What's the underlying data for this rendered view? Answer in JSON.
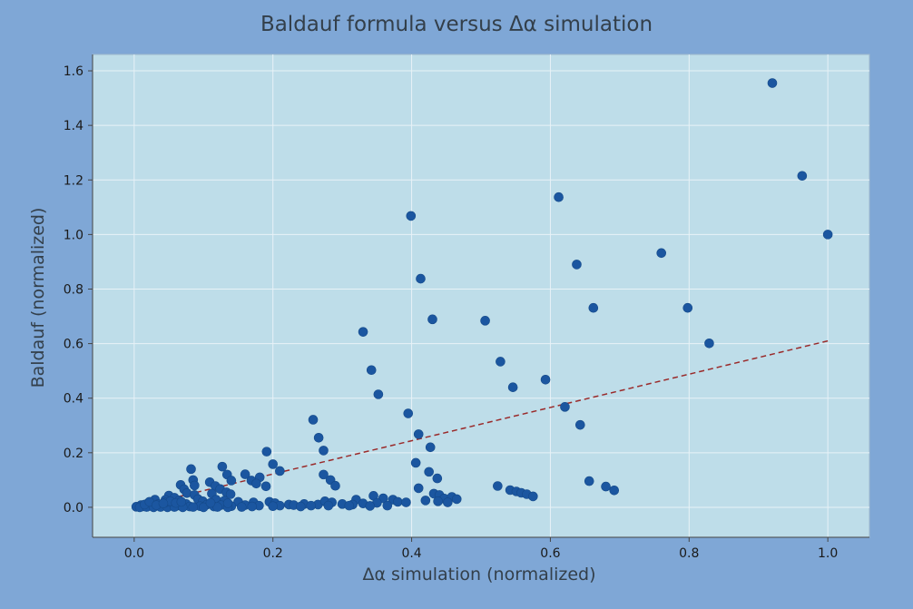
{
  "chart_data": {
    "type": "scatter",
    "title": "Baldauf formula versus Δα simulation",
    "xlabel": "Δα simulation (normalized)",
    "ylabel": "Baldauf (normalized)",
    "xlim": [
      -0.06,
      1.06
    ],
    "ylim": [
      -0.11,
      1.66
    ],
    "xticks": [
      "0.0",
      "0.2",
      "0.4",
      "0.6",
      "0.8",
      "1.0"
    ],
    "yticks": [
      "0.0",
      "0.2",
      "0.4",
      "0.6",
      "0.8",
      "1.0",
      "1.2",
      "1.4",
      "1.6"
    ],
    "grid": true,
    "colors": {
      "background": "#7fa7d6",
      "plot_area": "#bedde9",
      "points": "#1b56a0",
      "trend_line": "#9a2a2a",
      "grid": "#e8f2f7"
    },
    "trend_line": {
      "style": "dashed",
      "x": [
        0.0,
        1.0
      ],
      "y": [
        0.0,
        0.61
      ]
    },
    "points": [
      [
        0.92,
        1.555
      ],
      [
        0.963,
        1.215
      ],
      [
        1.0,
        1.0
      ],
      [
        0.612,
        1.137
      ],
      [
        0.399,
        1.068
      ],
      [
        0.76,
        0.932
      ],
      [
        0.638,
        0.89
      ],
      [
        0.413,
        0.838
      ],
      [
        0.662,
        0.731
      ],
      [
        0.798,
        0.731
      ],
      [
        0.43,
        0.689
      ],
      [
        0.506,
        0.684
      ],
      [
        0.33,
        0.643
      ],
      [
        0.829,
        0.601
      ],
      [
        0.528,
        0.534
      ],
      [
        0.342,
        0.503
      ],
      [
        0.593,
        0.468
      ],
      [
        0.546,
        0.44
      ],
      [
        0.352,
        0.414
      ],
      [
        0.621,
        0.368
      ],
      [
        0.395,
        0.344
      ],
      [
        0.258,
        0.321
      ],
      [
        0.643,
        0.302
      ],
      [
        0.41,
        0.268
      ],
      [
        0.266,
        0.255
      ],
      [
        0.427,
        0.22
      ],
      [
        0.273,
        0.208
      ],
      [
        0.191,
        0.204
      ],
      [
        0.2,
        0.158
      ],
      [
        0.406,
        0.163
      ],
      [
        0.082,
        0.14
      ],
      [
        0.127,
        0.149
      ],
      [
        0.21,
        0.133
      ],
      [
        0.425,
        0.13
      ],
      [
        0.134,
        0.12
      ],
      [
        0.16,
        0.121
      ],
      [
        0.181,
        0.11
      ],
      [
        0.273,
        0.12
      ],
      [
        0.085,
        0.1
      ],
      [
        0.109,
        0.092
      ],
      [
        0.437,
        0.106
      ],
      [
        0.169,
        0.098
      ],
      [
        0.14,
        0.098
      ],
      [
        0.283,
        0.1
      ],
      [
        0.656,
        0.096
      ],
      [
        0.087,
        0.08
      ],
      [
        0.117,
        0.078
      ],
      [
        0.067,
        0.082
      ],
      [
        0.176,
        0.087
      ],
      [
        0.19,
        0.077
      ],
      [
        0.29,
        0.079
      ],
      [
        0.41,
        0.07
      ],
      [
        0.524,
        0.078
      ],
      [
        0.68,
        0.076
      ],
      [
        0.692,
        0.062
      ],
      [
        0.124,
        0.067
      ],
      [
        0.072,
        0.066
      ],
      [
        0.133,
        0.055
      ],
      [
        0.076,
        0.052
      ],
      [
        0.542,
        0.063
      ],
      [
        0.551,
        0.058
      ],
      [
        0.558,
        0.053
      ],
      [
        0.566,
        0.048
      ],
      [
        0.575,
        0.04
      ],
      [
        0.432,
        0.05
      ],
      [
        0.44,
        0.045
      ],
      [
        0.05,
        0.043
      ],
      [
        0.087,
        0.045
      ],
      [
        0.112,
        0.05
      ],
      [
        0.139,
        0.048
      ],
      [
        0.058,
        0.035
      ],
      [
        0.092,
        0.03
      ],
      [
        0.32,
        0.028
      ],
      [
        0.345,
        0.042
      ],
      [
        0.359,
        0.033
      ],
      [
        0.373,
        0.028
      ],
      [
        0.447,
        0.032
      ],
      [
        0.458,
        0.038
      ],
      [
        0.465,
        0.03
      ],
      [
        0.03,
        0.028
      ],
      [
        0.045,
        0.027
      ],
      [
        0.065,
        0.025
      ],
      [
        0.099,
        0.022
      ],
      [
        0.118,
        0.028
      ],
      [
        0.13,
        0.024
      ],
      [
        0.15,
        0.02
      ],
      [
        0.172,
        0.018
      ],
      [
        0.195,
        0.02
      ],
      [
        0.203,
        0.015
      ],
      [
        0.223,
        0.01
      ],
      [
        0.245,
        0.012
      ],
      [
        0.265,
        0.01
      ],
      [
        0.275,
        0.022
      ],
      [
        0.285,
        0.018
      ],
      [
        0.3,
        0.012
      ],
      [
        0.315,
        0.01
      ],
      [
        0.33,
        0.014
      ],
      [
        0.35,
        0.016
      ],
      [
        0.38,
        0.02
      ],
      [
        0.392,
        0.018
      ],
      [
        0.42,
        0.025
      ],
      [
        0.438,
        0.022
      ],
      [
        0.452,
        0.018
      ],
      [
        0.01,
        0.008
      ],
      [
        0.02,
        0.015
      ],
      [
        0.035,
        0.012
      ],
      [
        0.055,
        0.01
      ],
      [
        0.075,
        0.012
      ],
      [
        0.105,
        0.01
      ],
      [
        0.125,
        0.008
      ],
      [
        0.16,
        0.008
      ],
      [
        0.18,
        0.006
      ],
      [
        0.21,
        0.006
      ],
      [
        0.23,
        0.008
      ],
      [
        0.255,
        0.006
      ],
      [
        0.28,
        0.006
      ],
      [
        0.31,
        0.006
      ],
      [
        0.34,
        0.005
      ],
      [
        0.365,
        0.006
      ],
      [
        0.003,
        0.002
      ],
      [
        0.012,
        0.003
      ],
      [
        0.025,
        0.004
      ],
      [
        0.04,
        0.005
      ],
      [
        0.06,
        0.004
      ],
      [
        0.08,
        0.003
      ],
      [
        0.095,
        0.004
      ],
      [
        0.115,
        0.003
      ],
      [
        0.14,
        0.004
      ],
      [
        0.17,
        0.003
      ],
      [
        0.2,
        0.004
      ],
      [
        0.24,
        0.003
      ],
      [
        0.008,
        0.0
      ],
      [
        0.018,
        0.001
      ],
      [
        0.028,
        0.0
      ],
      [
        0.038,
        0.001
      ],
      [
        0.048,
        0.0
      ],
      [
        0.058,
        0.001
      ],
      [
        0.07,
        0.0
      ],
      [
        0.085,
        0.001
      ],
      [
        0.1,
        0.0
      ],
      [
        0.12,
        0.001
      ],
      [
        0.135,
        0.0
      ],
      [
        0.155,
        0.001
      ],
      [
        0.045,
        0.018
      ],
      [
        0.052,
        0.022
      ],
      [
        0.06,
        0.016
      ],
      [
        0.068,
        0.02
      ],
      [
        0.11,
        0.016
      ],
      [
        0.135,
        0.015
      ],
      [
        0.015,
        0.01
      ],
      [
        0.022,
        0.02
      ],
      [
        0.032,
        0.008
      ],
      [
        0.042,
        0.014
      ]
    ]
  }
}
